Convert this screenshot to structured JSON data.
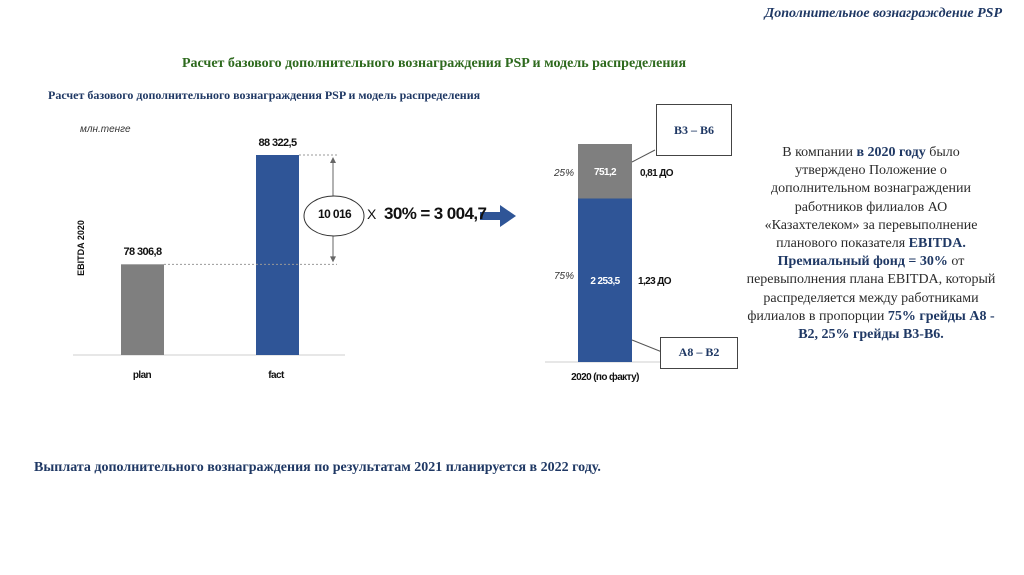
{
  "header": {
    "title": "Дополнительное вознаграждение PSP"
  },
  "slide": {
    "heading": "Расчет базового дополнительного вознаграждения PSP и модель распределения",
    "subheading": "Расчет базового дополнительного вознаграждения PSP и модель распределения"
  },
  "chart_data": [
    {
      "type": "bar",
      "unit_label": "млн.тенге",
      "ylabel": "EBITDA 2020",
      "categories": [
        "plan",
        "fact"
      ],
      "values": [
        78306.8,
        88322.5
      ],
      "value_labels": [
        "78 306,8",
        "88 322,5"
      ],
      "colors": [
        "#7f7f7f",
        "#2f5597"
      ],
      "annotation": {
        "difference": "10 016",
        "operator": "Х",
        "formula": "30% = 3 004,7"
      }
    },
    {
      "type": "bar",
      "stacked": true,
      "categories": [
        "2020 (по факту)"
      ],
      "series": [
        {
          "percent": "75%",
          "value": 2253.5,
          "label": "2 253,5",
          "note": "1,23 ДО",
          "group": "А8 – В2",
          "color": "#2f5597"
        },
        {
          "percent": "25%",
          "value": 751.2,
          "label": "751,2",
          "note": "0,81 ДО",
          "group": "В3 – В6",
          "color": "#7f7f7f"
        }
      ]
    }
  ],
  "sidebar": {
    "text_1": "В компании ",
    "bold_1": "в 2020 году",
    "text_2": " было утверждено Положение о дополнительном вознаграждении работников филиалов АО «Казахтелеком» за перевыполнение планового показателя ",
    "bold_2": "EBITDA. Премиальный фонд = 30%",
    "text_3": " от перевыполнения плана EBITDA, который распределяется между работниками филиалов в пропорции ",
    "bold_3": "75% грейды А8 - В2, 25% грейды В3-В6."
  },
  "footer": {
    "text": "Выплата дополнительного вознаграждения по результатам  2021 планируется в 2022 году."
  }
}
